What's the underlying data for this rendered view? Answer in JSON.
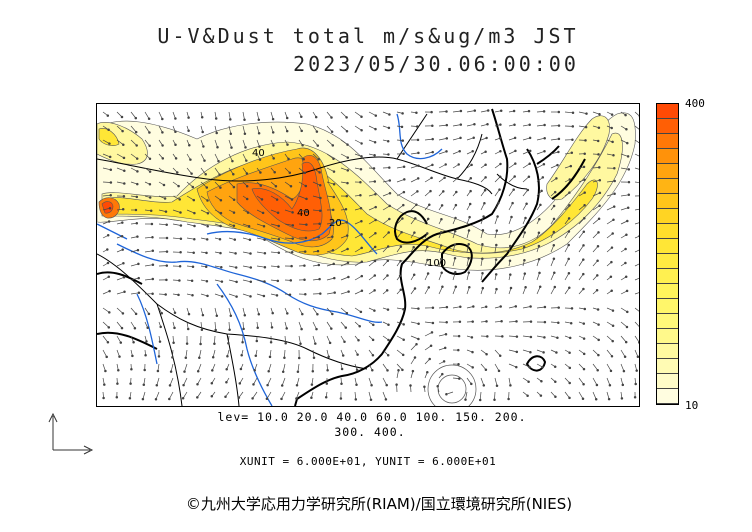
{
  "title_line1": "U-V&Dust total m/s&ug/m3 JST",
  "title_line2": "2023/05/30.06:00:00",
  "colorbar": {
    "max_label": "400",
    "min_label": "10",
    "colors": [
      "#ff4a05",
      "#ff5f05",
      "#ff7807",
      "#ff920a",
      "#ffa40f",
      "#ffb414",
      "#ffc51a",
      "#ffd423",
      "#ffde2c",
      "#ffe636",
      "#ffeb42",
      "#fff050",
      "#fff45c",
      "#fff66a",
      "#fff87a",
      "#fff98b",
      "#fffaa0",
      "#fffbb4",
      "#fffcc8",
      "#fffde0"
    ]
  },
  "levels_line1": "lev= 10.0 20.0 40.0 60.0 100. 150. 200.",
  "levels_line2": "300. 400.",
  "units_text": "XUNIT = 6.000E+01, YUNIT = 6.000E+01",
  "copyright": "©九州大学応用力学研究所(RIAM)/国立環境研究所(NIES)",
  "contour_labels": [
    "40",
    "40",
    "100",
    "20"
  ]
}
